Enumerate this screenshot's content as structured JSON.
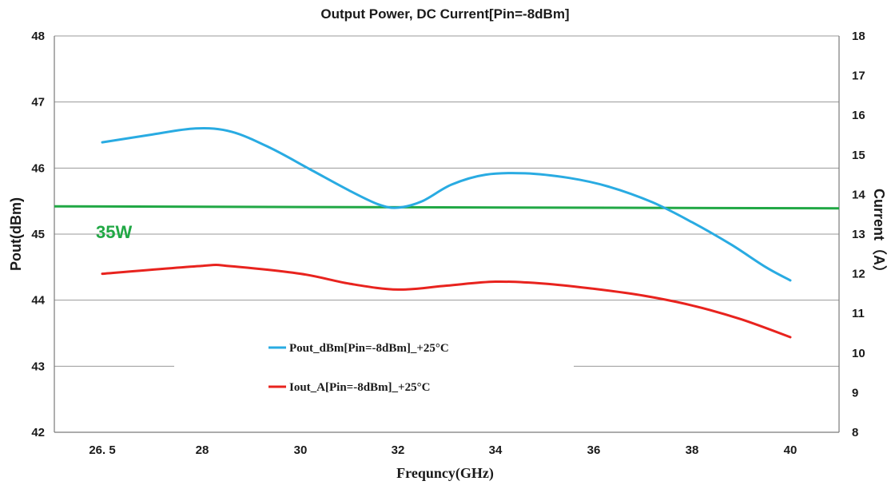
{
  "chart_data": {
    "type": "line",
    "title": "Output Power, DC Current[Pin=-8dBm]",
    "xlabel": "Frequncy(GHz)",
    "ylabel_left": "Pout(dBm)",
    "ylabel_right": "Current（A）",
    "x_tick_labels": [
      "26. 5",
      "28",
      "30",
      "32",
      "34",
      "36",
      "38",
      "40"
    ],
    "y_left_ticks": [
      "42",
      "43",
      "44",
      "45",
      "46",
      "47",
      "48"
    ],
    "y_right_ticks": [
      "8",
      "9",
      "10",
      "11",
      "12",
      "13",
      "14",
      "15",
      "16",
      "17",
      "18"
    ],
    "y_left_range": [
      42,
      48
    ],
    "y_right_range": [
      8,
      18
    ],
    "x_range": [
      26.5,
      40
    ],
    "grid": "horizontal",
    "legend_position": "center-left",
    "series": [
      {
        "name": "Pout_dBm[Pin=-8dBm]_+25°C",
        "axis": "left",
        "color": "#29abe2",
        "x": [
          26.5,
          27.2,
          27.9,
          28.6,
          29.4,
          30.2,
          31.0,
          31.6,
          32.0,
          32.5,
          33.1,
          33.8,
          34.6,
          35.5,
          36.3,
          37.2,
          38.0,
          38.8,
          39.5,
          40.0
        ],
        "values": [
          46.39,
          46.5,
          46.6,
          46.55,
          46.3,
          45.98,
          45.66,
          45.45,
          45.4,
          45.5,
          45.75,
          45.9,
          45.92,
          45.85,
          45.72,
          45.48,
          45.18,
          44.84,
          44.5,
          44.3
        ]
      },
      {
        "name": "Iout_A[Pin=-8dBm]_+25°C",
        "axis": "right",
        "color": "#e8231e",
        "x": [
          26.5,
          28,
          28.5,
          30,
          31,
          32,
          33,
          34,
          35,
          36,
          37,
          38,
          39,
          40
        ],
        "values": [
          12.0,
          12.2,
          12.2,
          12.0,
          11.75,
          11.6,
          11.7,
          11.8,
          11.75,
          11.62,
          11.45,
          11.2,
          10.85,
          10.4
        ]
      }
    ],
    "reference_line": {
      "axis": "left",
      "value": 45.42,
      "end_value": 45.39,
      "color": "#21a845",
      "label": "35W"
    }
  }
}
